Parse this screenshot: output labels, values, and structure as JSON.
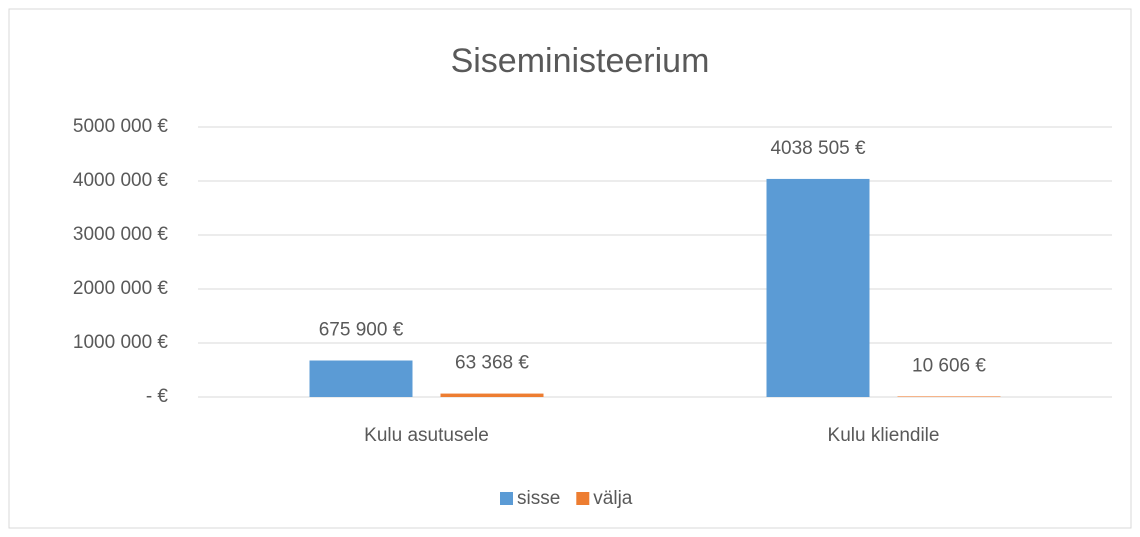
{
  "chart_data": {
    "type": "bar",
    "title": "Siseministeerium",
    "categories": [
      "Kulu asutusele",
      "Kulu kliendile"
    ],
    "series": [
      {
        "name": "sisse",
        "color": "#5b9bd5",
        "values": [
          675900,
          4038505
        ],
        "value_labels": [
          "675 900 €",
          "4038 505 €"
        ]
      },
      {
        "name": "välja",
        "color": "#ed7d31",
        "values": [
          63368,
          10606
        ],
        "value_labels": [
          "63 368 €",
          "10 606 €"
        ]
      }
    ],
    "ylim": [
      0,
      5000000
    ],
    "yticks": [
      {
        "value": 0,
        "label": "-  €"
      },
      {
        "value": 1000000,
        "label": "1000 000 €"
      },
      {
        "value": 2000000,
        "label": "2000 000 €"
      },
      {
        "value": 3000000,
        "label": "3000 000 €"
      },
      {
        "value": 4000000,
        "label": "4000 000 €"
      },
      {
        "value": 5000000,
        "label": "5000 000 €"
      }
    ],
    "grid": true,
    "legend": "bottom"
  }
}
